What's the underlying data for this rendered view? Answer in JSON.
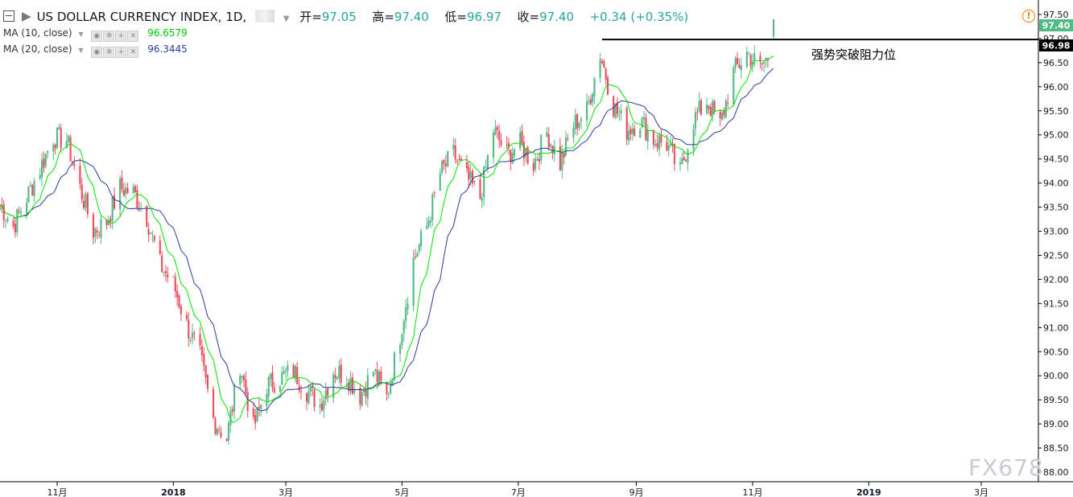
{
  "header": {
    "title": "US DOLLAR CURRENCY INDEX, 1D,",
    "open_label": "开=",
    "open_value": "97.05",
    "high_label": "高=",
    "high_value": "97.40",
    "low_label": "低=",
    "low_value": "96.97",
    "close_label": "收=",
    "close_value": "97.40",
    "change": "+0.34 (+0.35%)"
  },
  "indicators": [
    {
      "label": "MA (10, close)",
      "value": "96.6579",
      "color": "#00e600"
    },
    {
      "label": "MA (20, close)",
      "value": "96.3445",
      "color": "#2a3c9a"
    }
  ],
  "colors": {
    "up": "#53b987",
    "down": "#eb4d5c",
    "ma10": "#00e600",
    "ma20": "#2a3c9a",
    "axis": "#000000"
  },
  "annotation": {
    "text": "强势突破阻力位",
    "level": 96.98
  },
  "watermark": "FX678",
  "chart_data": {
    "type": "candlestick",
    "title": "US DOLLAR CURRENCY INDEX, 1D",
    "ylim": [
      87.8,
      97.8
    ],
    "y_ticks": [
      "97.50",
      "97.00",
      "96.50",
      "96.00",
      "95.50",
      "95.00",
      "94.50",
      "94.00",
      "93.50",
      "93.00",
      "92.50",
      "92.00",
      "91.50",
      "91.00",
      "90.50",
      "90.00",
      "89.50",
      "89.00",
      "88.50",
      "88.00"
    ],
    "last_price_label": "97.40",
    "level_label": "96.98",
    "x_ticks": [
      {
        "label": "11月",
        "date": "2017-11-01"
      },
      {
        "label": "2018",
        "date": "2018-01-01"
      },
      {
        "label": "3月",
        "date": "2018-03-01"
      },
      {
        "label": "5月",
        "date": "2018-05-01"
      },
      {
        "label": "7月",
        "date": "2018-07-01"
      },
      {
        "label": "9月",
        "date": "2018-09-01"
      },
      {
        "label": "11月",
        "date": "2018-11-01"
      },
      {
        "label": "2019",
        "date": "2019-01-01"
      },
      {
        "label": "3月",
        "date": "2019-03-01"
      }
    ],
    "x_start": "2017-10-02",
    "series": [
      {
        "name": "MA (10, close)",
        "kind": "ma10"
      },
      {
        "name": "MA (20, close)",
        "kind": "ma20"
      }
    ],
    "close_path": [
      [
        "2017-10-02",
        93.55
      ],
      [
        "2017-10-09",
        93.1
      ],
      [
        "2017-10-16",
        93.7
      ],
      [
        "2017-10-23",
        94.3
      ],
      [
        "2017-10-30",
        94.95
      ],
      [
        "2017-11-06",
        94.9
      ],
      [
        "2017-11-13",
        93.9
      ],
      [
        "2017-11-20",
        93.0
      ],
      [
        "2017-11-27",
        93.2
      ],
      [
        "2017-12-04",
        93.9
      ],
      [
        "2017-12-11",
        93.8
      ],
      [
        "2017-12-18",
        93.3
      ],
      [
        "2017-12-25",
        92.3
      ],
      [
        "2018-01-01",
        91.9
      ],
      [
        "2018-01-08",
        91.05
      ],
      [
        "2018-01-15",
        90.4
      ],
      [
        "2018-01-22",
        89.1
      ],
      [
        "2018-01-29",
        88.7
      ],
      [
        "2018-02-05",
        90.25
      ],
      [
        "2018-02-12",
        88.9
      ],
      [
        "2018-02-19",
        89.8
      ],
      [
        "2018-02-26",
        89.95
      ],
      [
        "2018-03-05",
        90.1
      ],
      [
        "2018-03-12",
        89.7
      ],
      [
        "2018-03-19",
        89.4
      ],
      [
        "2018-03-26",
        90.1
      ],
      [
        "2018-04-02",
        90.0
      ],
      [
        "2018-04-09",
        89.6
      ],
      [
        "2018-04-16",
        90.1
      ],
      [
        "2018-04-23",
        89.55
      ],
      [
        "2018-04-30",
        90.85
      ],
      [
        "2018-05-07",
        92.4
      ],
      [
        "2018-05-14",
        93.1
      ],
      [
        "2018-05-21",
        94.2
      ],
      [
        "2018-05-28",
        94.6
      ],
      [
        "2018-06-04",
        94.1
      ],
      [
        "2018-06-11",
        93.7
      ],
      [
        "2018-06-18",
        95.1
      ],
      [
        "2018-06-25",
        94.6
      ],
      [
        "2018-07-02",
        94.8
      ],
      [
        "2018-07-09",
        94.4
      ],
      [
        "2018-07-16",
        95.05
      ],
      [
        "2018-07-23",
        94.4
      ],
      [
        "2018-07-30",
        95.2
      ],
      [
        "2018-08-06",
        95.5
      ],
      [
        "2018-08-13",
        96.7
      ],
      [
        "2018-08-20",
        95.6
      ],
      [
        "2018-08-27",
        95.1
      ],
      [
        "2018-09-03",
        95.3
      ],
      [
        "2018-09-10",
        94.9
      ],
      [
        "2018-09-17",
        94.8
      ],
      [
        "2018-09-24",
        94.2
      ],
      [
        "2018-10-01",
        95.3
      ],
      [
        "2018-10-08",
        95.7
      ],
      [
        "2018-10-15",
        95.2
      ],
      [
        "2018-10-22",
        96.3
      ],
      [
        "2018-10-29",
        96.7
      ],
      [
        "2018-11-05",
        96.4
      ],
      [
        "2018-11-09",
        96.6
      ],
      [
        "2018-11-12",
        97.4
      ]
    ],
    "ma10_end": 96.6579,
    "ma20_end": 96.3445
  }
}
